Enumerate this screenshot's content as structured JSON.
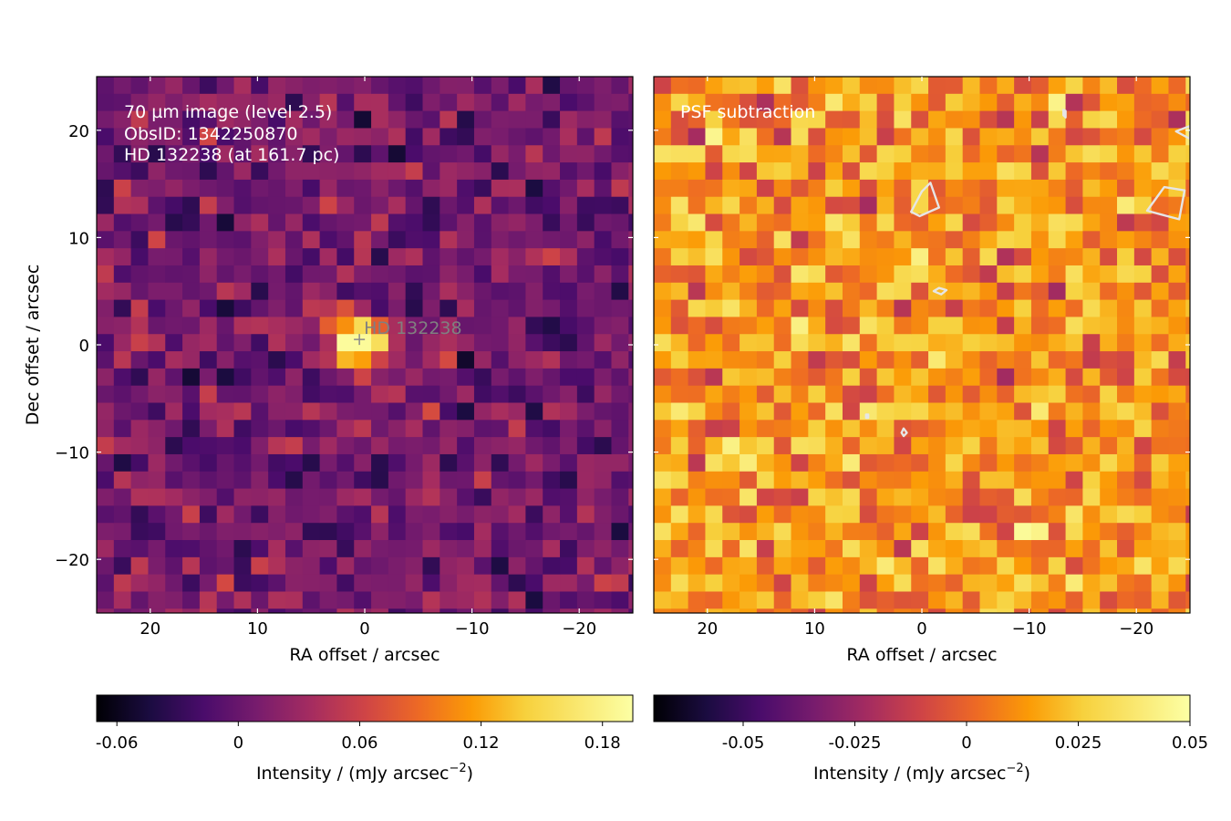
{
  "chart_data": [
    {
      "type": "heatmap",
      "xlabel": "RA offset / arcsec",
      "ylabel": "Dec offset / arcsec",
      "xlim": [
        25,
        -25
      ],
      "ylim": [
        -25,
        25
      ],
      "x_ticks": [
        20,
        10,
        0,
        -10,
        -20
      ],
      "x_tick_labels": [
        "20",
        "10",
        "0",
        "−10",
        "−20"
      ],
      "y_ticks": [
        20,
        10,
        0,
        -10,
        -20
      ],
      "y_tick_labels": [
        "20",
        "10",
        "0",
        "−10",
        "−20"
      ],
      "annotation_lines": [
        "70 µm image (level 2.5)",
        "ObsID: 1342250870",
        "HD 132238 (at 161.7 pc)"
      ],
      "star_label": "HD 132238",
      "star_marker": [
        0.5,
        0.5
      ],
      "pixel_size_arcsec": 1.6,
      "colormap": "inferno",
      "value_range": [
        -0.07,
        0.195
      ],
      "source": {
        "x": 0.5,
        "y": 0.2,
        "sigma": 1.9,
        "peak": 0.2
      },
      "colorbar": {
        "ticks": [
          -0.06,
          0,
          0.06,
          0.12,
          0.18
        ],
        "tick_labels": [
          "-0.06",
          "0",
          "0.06",
          "0.12",
          "0.18"
        ],
        "label": "Intensity / (mJy arcsec",
        "label_sup": "−2",
        "label_end": ")"
      }
    },
    {
      "type": "heatmap",
      "xlabel": "RA offset / arcsec",
      "xlim": [
        25,
        -25
      ],
      "ylim": [
        -25,
        25
      ],
      "x_ticks": [
        20,
        10,
        0,
        -10,
        -20
      ],
      "x_tick_labels": [
        "20",
        "10",
        "0",
        "−10",
        "−20"
      ],
      "y_ticks": [
        20,
        10,
        0,
        -10,
        -20
      ],
      "annotation_lines": [
        "PSF subtraction"
      ],
      "pixel_size_arcsec": 1.6,
      "colormap": "inferno",
      "value_range": [
        -0.07,
        0.05
      ],
      "colorbar": {
        "ticks": [
          -0.05,
          -0.025,
          0,
          0.025,
          0.05
        ],
        "tick_labels": [
          "-0.05",
          "-0.025",
          "0",
          "0.025",
          "0.05"
        ],
        "label": "Intensity / (mJy arcsec",
        "label_sup": "−2",
        "label_end": ")"
      },
      "contours": [
        {
          "points": [
            [
              0,
              14.3
            ],
            [
              1.0,
              12.4
            ],
            [
              0.2,
              12.0
            ],
            [
              -1.6,
              12.8
            ],
            [
              -0.8,
              15.1
            ]
          ]
        },
        {
          "points": [
            [
              -21.0,
              12.5
            ],
            [
              -24.0,
              11.7
            ],
            [
              -24.5,
              14.4
            ],
            [
              -22.6,
              14.7
            ]
          ]
        },
        {
          "points": [
            [
              -23.7,
              19.9
            ],
            [
              -25.0,
              19.2
            ],
            [
              -25.0,
              20.4
            ]
          ]
        },
        {
          "points": [
            [
              -1.1,
              5.0
            ],
            [
              -1.8,
              4.7
            ],
            [
              -2.3,
              5.1
            ],
            [
              -1.6,
              5.3
            ]
          ]
        },
        {
          "points": [
            [
              1.4,
              -8.2
            ],
            [
              1.7,
              -8.5
            ],
            [
              1.9,
              -8.2
            ],
            [
              1.7,
              -7.8
            ]
          ]
        },
        {
          "points": [
            [
              -13.2,
              21.4
            ],
            [
              -13.4,
              21.2
            ],
            [
              -13.4,
              21.8
            ],
            [
              -13.2,
              21.9
            ]
          ]
        },
        {
          "points": [
            [
              5.0,
              -6.5
            ],
            [
              5.2,
              -6.5
            ],
            [
              5.2,
              -6.8
            ],
            [
              5.0,
              -6.8
            ]
          ]
        }
      ]
    }
  ]
}
